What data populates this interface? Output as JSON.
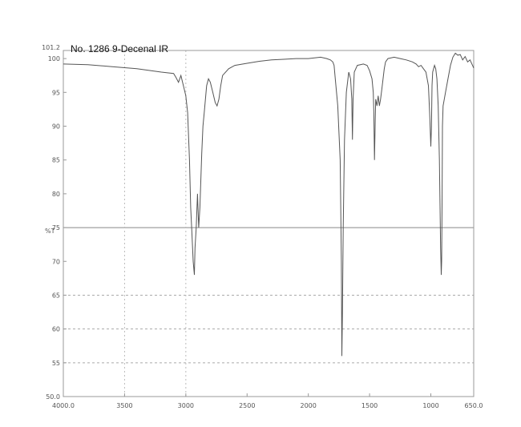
{
  "chart_data": {
    "type": "line",
    "title": "No. 1286 9-Decenal IR",
    "ylabel": "%T",
    "xlabel": "",
    "xlim": [
      4000,
      650
    ],
    "ylim": [
      50,
      101.2
    ],
    "x_ticks": [
      4000,
      3500,
      3000,
      2500,
      2000,
      1500,
      1000,
      650
    ],
    "x_tick_labels": [
      "4000.0",
      "3500",
      "3000",
      "2500",
      "2000",
      "1500",
      "1000",
      "650.0"
    ],
    "y_ticks": [
      50,
      55,
      60,
      65,
      70,
      75,
      80,
      85,
      90,
      95,
      100,
      101.2
    ],
    "y_tick_labels": [
      "50.0",
      "55",
      "60",
      "65",
      "70",
      "75",
      "80",
      "85",
      "90",
      "95",
      "100",
      "101.2"
    ],
    "grid_y": [
      55,
      60,
      65,
      75
    ],
    "grid_x": [
      3500,
      3000
    ],
    "series": [
      {
        "color": "#555555",
        "x": [
          4000,
          3800,
          3600,
          3400,
          3200,
          3100,
          3080,
          3060,
          3040,
          3020,
          3000,
          2985,
          2970,
          2960,
          2950,
          2940,
          2930,
          2925,
          2915,
          2905,
          2895,
          2885,
          2870,
          2860,
          2850,
          2840,
          2830,
          2815,
          2800,
          2780,
          2760,
          2745,
          2730,
          2715,
          2700,
          2650,
          2600,
          2500,
          2400,
          2300,
          2200,
          2100,
          2000,
          1900,
          1850,
          1820,
          1800,
          1790,
          1780,
          1760,
          1740,
          1730,
          1726,
          1722,
          1715,
          1705,
          1690,
          1670,
          1655,
          1645,
          1640,
          1635,
          1625,
          1600,
          1550,
          1520,
          1500,
          1480,
          1470,
          1465,
          1460,
          1455,
          1450,
          1440,
          1430,
          1420,
          1410,
          1400,
          1390,
          1380,
          1370,
          1350,
          1300,
          1250,
          1200,
          1150,
          1120,
          1100,
          1080,
          1060,
          1040,
          1020,
          1010,
          1000,
          995,
          990,
          985,
          970,
          960,
          950,
          940,
          930,
          920,
          915,
          912,
          908,
          905,
          900,
          890,
          880,
          860,
          840,
          820,
          800,
          780,
          760,
          740,
          720,
          700,
          680,
          660,
          650
        ],
        "y": [
          99.2,
          99.1,
          98.8,
          98.5,
          98.0,
          97.8,
          97.2,
          96.5,
          97.5,
          96.0,
          94.5,
          92.0,
          85.0,
          78.0,
          74.0,
          70.0,
          68.0,
          72.0,
          75.0,
          80.0,
          75.0,
          78.0,
          86.0,
          90.0,
          92.0,
          94.0,
          96.0,
          97.0,
          96.5,
          95.0,
          93.5,
          93.0,
          94.0,
          96.0,
          97.5,
          98.5,
          99.0,
          99.3,
          99.6,
          99.8,
          99.9,
          100.0,
          100.0,
          100.2,
          100.0,
          99.8,
          99.5,
          99.0,
          97.0,
          93.0,
          85.0,
          70.0,
          56.0,
          62.0,
          75.0,
          88.0,
          95.0,
          98.0,
          97.0,
          94.0,
          88.0,
          94.0,
          98.0,
          99.0,
          99.2,
          99.0,
          98.2,
          97.0,
          95.0,
          92.0,
          85.0,
          90.0,
          94.0,
          93.0,
          94.5,
          93.0,
          94.0,
          95.5,
          97.0,
          98.5,
          99.5,
          100.0,
          100.2,
          100.0,
          99.8,
          99.5,
          99.2,
          98.8,
          99.0,
          98.5,
          98.0,
          96.0,
          92.0,
          87.0,
          90.0,
          96.0,
          98.0,
          99.0,
          98.5,
          97.0,
          93.0,
          85.0,
          72.0,
          68.0,
          70.0,
          80.0,
          90.0,
          93.0,
          94.0,
          95.0,
          97.0,
          99.0,
          100.2,
          100.8,
          100.5,
          100.6,
          99.8,
          100.3,
          99.5,
          99.8,
          99.0,
          98.6
        ]
      }
    ]
  }
}
